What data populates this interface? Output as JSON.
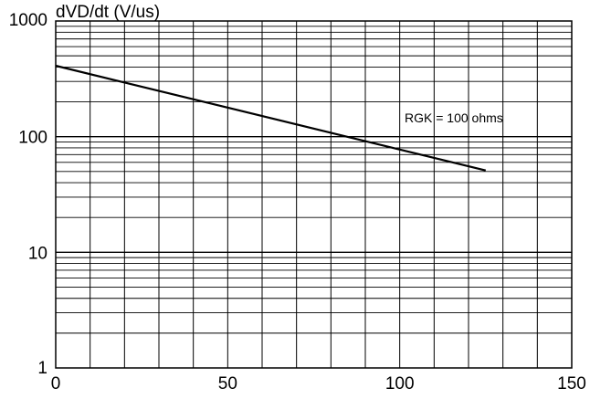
{
  "chart_data": {
    "type": "line",
    "ylabel": "dVD/dt (V/us)",
    "xlabel": "",
    "title": "",
    "x_scale": "linear",
    "y_scale": "log",
    "xlim": [
      0,
      150
    ],
    "ylim": [
      1,
      1000
    ],
    "x_ticks": [
      "0",
      "50",
      "100",
      "150"
    ],
    "y_ticks": [
      "1",
      "10",
      "100",
      "1000"
    ],
    "grid": true,
    "series": [
      {
        "label": "RGK = 100 ohms",
        "x": [
          0,
          125
        ],
        "y": [
          410,
          51
        ]
      }
    ],
    "colors": {
      "line": "#000000",
      "grid": "#000000",
      "background": "#ffffff"
    }
  }
}
